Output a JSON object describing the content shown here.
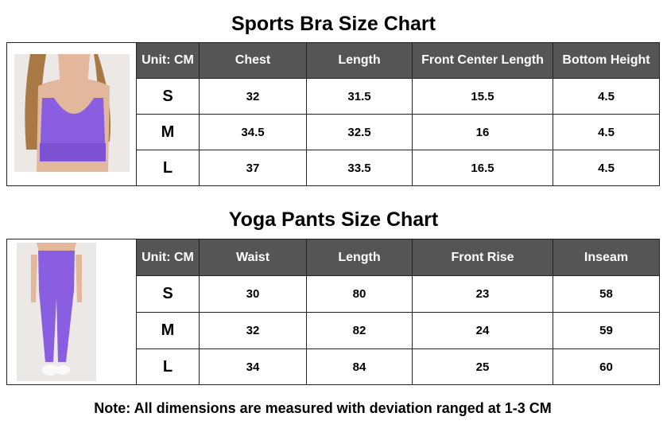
{
  "bra_chart": {
    "title": "Sports Bra Size Chart",
    "image": "purple sports bra model photo",
    "headers": [
      "Unit: CM",
      "Chest",
      "Length",
      "Front Center Length",
      "Bottom Height"
    ],
    "rows": [
      [
        "S",
        "32",
        "31.5",
        "15.5",
        "4.5"
      ],
      [
        "M",
        "34.5",
        "32.5",
        "16",
        "4.5"
      ],
      [
        "L",
        "37",
        "33.5",
        "16.5",
        "4.5"
      ]
    ]
  },
  "pants_chart": {
    "title": "Yoga Pants Size Chart",
    "image": "purple yoga pants model photo",
    "headers": [
      "Unit: CM",
      "Waist",
      "Length",
      "Front Rise",
      "Inseam"
    ],
    "rows": [
      [
        "S",
        "30",
        "80",
        "23",
        "58"
      ],
      [
        "M",
        "32",
        "82",
        "24",
        "59"
      ],
      [
        "L",
        "34",
        "84",
        "25",
        "60"
      ]
    ]
  },
  "note": "Note: All dimensions are measured with deviation ranged at 1-3 CM",
  "colors": {
    "header_bg": "#555555",
    "product": "#8a5ee0"
  }
}
